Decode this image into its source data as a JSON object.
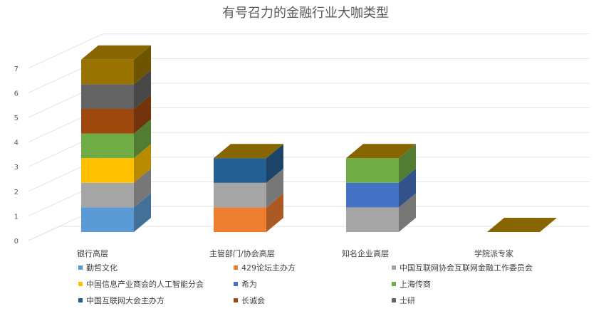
{
  "chart_data": {
    "type": "bar",
    "stacked": true,
    "three_d": true,
    "title": "有号召力的金融行业大咖类型",
    "categories": [
      "银行高层",
      "主管部门/协会高层",
      "知名企业高层",
      "学院派专家"
    ],
    "ylim": [
      0,
      7
    ],
    "yticks": [
      0,
      1,
      2,
      3,
      4,
      5,
      6,
      7
    ],
    "grid": true,
    "legend_position": "bottom",
    "series": [
      {
        "name": "勤哲文化",
        "color": "#5b9bd5",
        "values": [
          1,
          0,
          0,
          0
        ]
      },
      {
        "name": "429论坛主办方",
        "color": "#ed7d31",
        "values": [
          0,
          1,
          0,
          0
        ]
      },
      {
        "name": "中国互联网协会互联网金融工作委员会",
        "color": "#a5a5a5",
        "values": [
          1,
          1,
          1,
          0
        ]
      },
      {
        "name": "中国信息产业商会的人工智能分会",
        "color": "#ffc000",
        "values": [
          1,
          0,
          0,
          0
        ]
      },
      {
        "name": "希为",
        "color": "#4472c4",
        "values": [
          0,
          0,
          1,
          0
        ]
      },
      {
        "name": "上海传商",
        "color": "#70ad47",
        "values": [
          1,
          0,
          1,
          0
        ]
      },
      {
        "name": "中国互联网大会主办方",
        "color": "#255e91",
        "values": [
          0,
          1,
          0,
          0
        ]
      },
      {
        "name": "长诚会",
        "color": "#9e480e",
        "values": [
          1,
          0,
          0,
          0
        ]
      },
      {
        "name": "士研",
        "color": "#636363",
        "values": [
          1,
          0,
          0,
          0
        ]
      },
      {
        "name": "",
        "color": "#997300",
        "values": [
          1,
          0,
          0,
          0
        ]
      }
    ]
  }
}
